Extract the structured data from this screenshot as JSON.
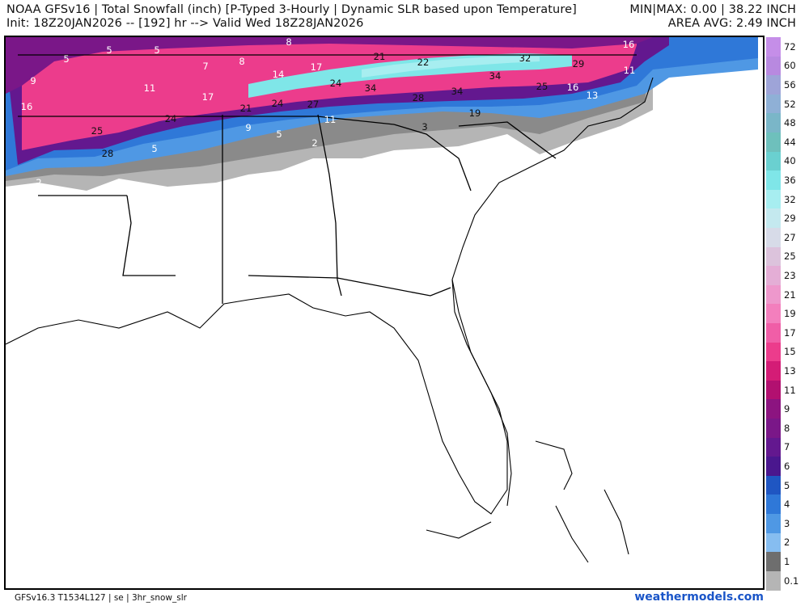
{
  "header": {
    "line1": "NOAA GFSv16 | Total Snowfall (inch) [P-Typed 3-Hourly | Dynamic SLR based upon Temperature]",
    "line2": "Init: 18Z20JAN2026 -- [192] hr --> Valid Wed 18Z28JAN2026",
    "minmax": "MIN|MAX: 0.00 | 38.22 INCH",
    "area_avg": "AREA AVG: 2.49 INCH"
  },
  "footer": {
    "left": "GFSv16.3 T1534L127 | se | 3hr_snow_slr",
    "right": "weathermodels.com"
  },
  "legend": {
    "labels": [
      "72",
      "60",
      "56",
      "52",
      "48",
      "44",
      "40",
      "36",
      "32",
      "29",
      "27",
      "25",
      "23",
      "21",
      "19",
      "17",
      "15",
      "13",
      "11",
      "9",
      "8",
      "7",
      "6",
      "5",
      "4",
      "3",
      "2",
      "1",
      "0.1"
    ],
    "colors": [
      "#c58ee8",
      "#b889e0",
      "#9ea4d8",
      "#8fb0d6",
      "#7ab6c8",
      "#6ec0bc",
      "#6ad0d0",
      "#7fe6e8",
      "#a7eef0",
      "#c4e9ef",
      "#d7dbe8",
      "#dcc3dc",
      "#e4aed6",
      "#ee98cc",
      "#f37fbd",
      "#f05ea7",
      "#ec3c8c",
      "#d41c76",
      "#b21070",
      "#8c1480",
      "#7a1788",
      "#63188f",
      "#4a178e",
      "#1f56c2",
      "#2f78d8",
      "#4f98e4",
      "#86bdf0",
      "#6e6e6e",
      "#b5b5b5"
    ]
  },
  "colors": {
    "snow_heavy": "#ec3c8c",
    "snow_very_heavy": "#7fe6e8",
    "snow_moderate": "#63188f",
    "snow_light": "#2f78d8",
    "trace": "#9b9b9b"
  },
  "map": {
    "point_labels": [
      {
        "v": "8"
      },
      {
        "v": "5"
      },
      {
        "v": "5"
      },
      {
        "v": "5"
      },
      {
        "v": "7"
      },
      {
        "v": "8"
      },
      {
        "v": "21"
      },
      {
        "v": "22"
      },
      {
        "v": "32"
      },
      {
        "v": "29"
      },
      {
        "v": "16"
      },
      {
        "v": "11"
      },
      {
        "v": "9"
      },
      {
        "v": "11"
      },
      {
        "v": "17"
      },
      {
        "v": "14"
      },
      {
        "v": "24"
      },
      {
        "v": "34"
      },
      {
        "v": "34"
      },
      {
        "v": "25"
      },
      {
        "v": "16"
      },
      {
        "v": "13"
      },
      {
        "v": "16"
      },
      {
        "v": "17"
      },
      {
        "v": "21"
      },
      {
        "v": "24"
      },
      {
        "v": "27"
      },
      {
        "v": "28"
      },
      {
        "v": "34"
      },
      {
        "v": "24"
      },
      {
        "v": "11"
      },
      {
        "v": "19"
      },
      {
        "v": "9"
      },
      {
        "v": "5"
      },
      {
        "v": "3"
      },
      {
        "v": "25"
      },
      {
        "v": "5"
      },
      {
        "v": "2"
      },
      {
        "v": "28"
      },
      {
        "v": "2"
      }
    ]
  }
}
